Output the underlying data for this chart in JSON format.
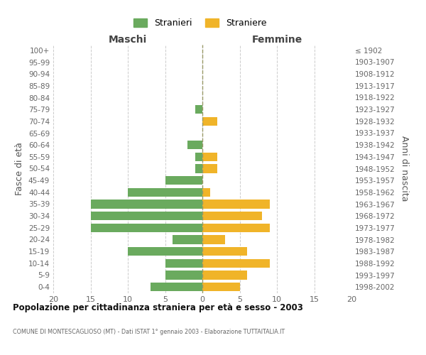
{
  "age_groups": [
    "100+",
    "95-99",
    "90-94",
    "85-89",
    "80-84",
    "75-79",
    "70-74",
    "65-69",
    "60-64",
    "55-59",
    "50-54",
    "45-49",
    "40-44",
    "35-39",
    "30-34",
    "25-29",
    "20-24",
    "15-19",
    "10-14",
    "5-9",
    "0-4"
  ],
  "birth_years": [
    "≤ 1902",
    "1903-1907",
    "1908-1912",
    "1913-1917",
    "1918-1922",
    "1923-1927",
    "1928-1932",
    "1933-1937",
    "1938-1942",
    "1943-1947",
    "1948-1952",
    "1953-1957",
    "1958-1962",
    "1963-1967",
    "1968-1972",
    "1973-1977",
    "1978-1982",
    "1983-1987",
    "1988-1992",
    "1993-1997",
    "1998-2002"
  ],
  "maschi": [
    0,
    0,
    0,
    0,
    0,
    1,
    0,
    0,
    2,
    1,
    1,
    5,
    10,
    15,
    15,
    15,
    4,
    10,
    5,
    5,
    7
  ],
  "femmine": [
    0,
    0,
    0,
    0,
    0,
    0,
    2,
    0,
    0,
    2,
    2,
    0,
    1,
    9,
    8,
    9,
    3,
    6,
    9,
    6,
    5
  ],
  "maschi_color": "#6aaa5e",
  "femmine_color": "#f0b429",
  "title": "Popolazione per cittadinanza straniera per età e sesso - 2003",
  "subtitle": "COMUNE DI MONTESCAGLIOSO (MT) - Dati ISTAT 1° gennaio 2003 - Elaborazione TUTTAITALIA.IT",
  "label_maschi": "Maschi",
  "label_femmine": "Femmine",
  "ylabel_left": "Fasce di età",
  "ylabel_right": "Anni di nascita",
  "xlim": 20,
  "legend_stranieri": "Stranieri",
  "legend_straniere": "Straniere",
  "background_color": "#ffffff",
  "grid_color": "#cccccc",
  "centerline_color": "#999966"
}
